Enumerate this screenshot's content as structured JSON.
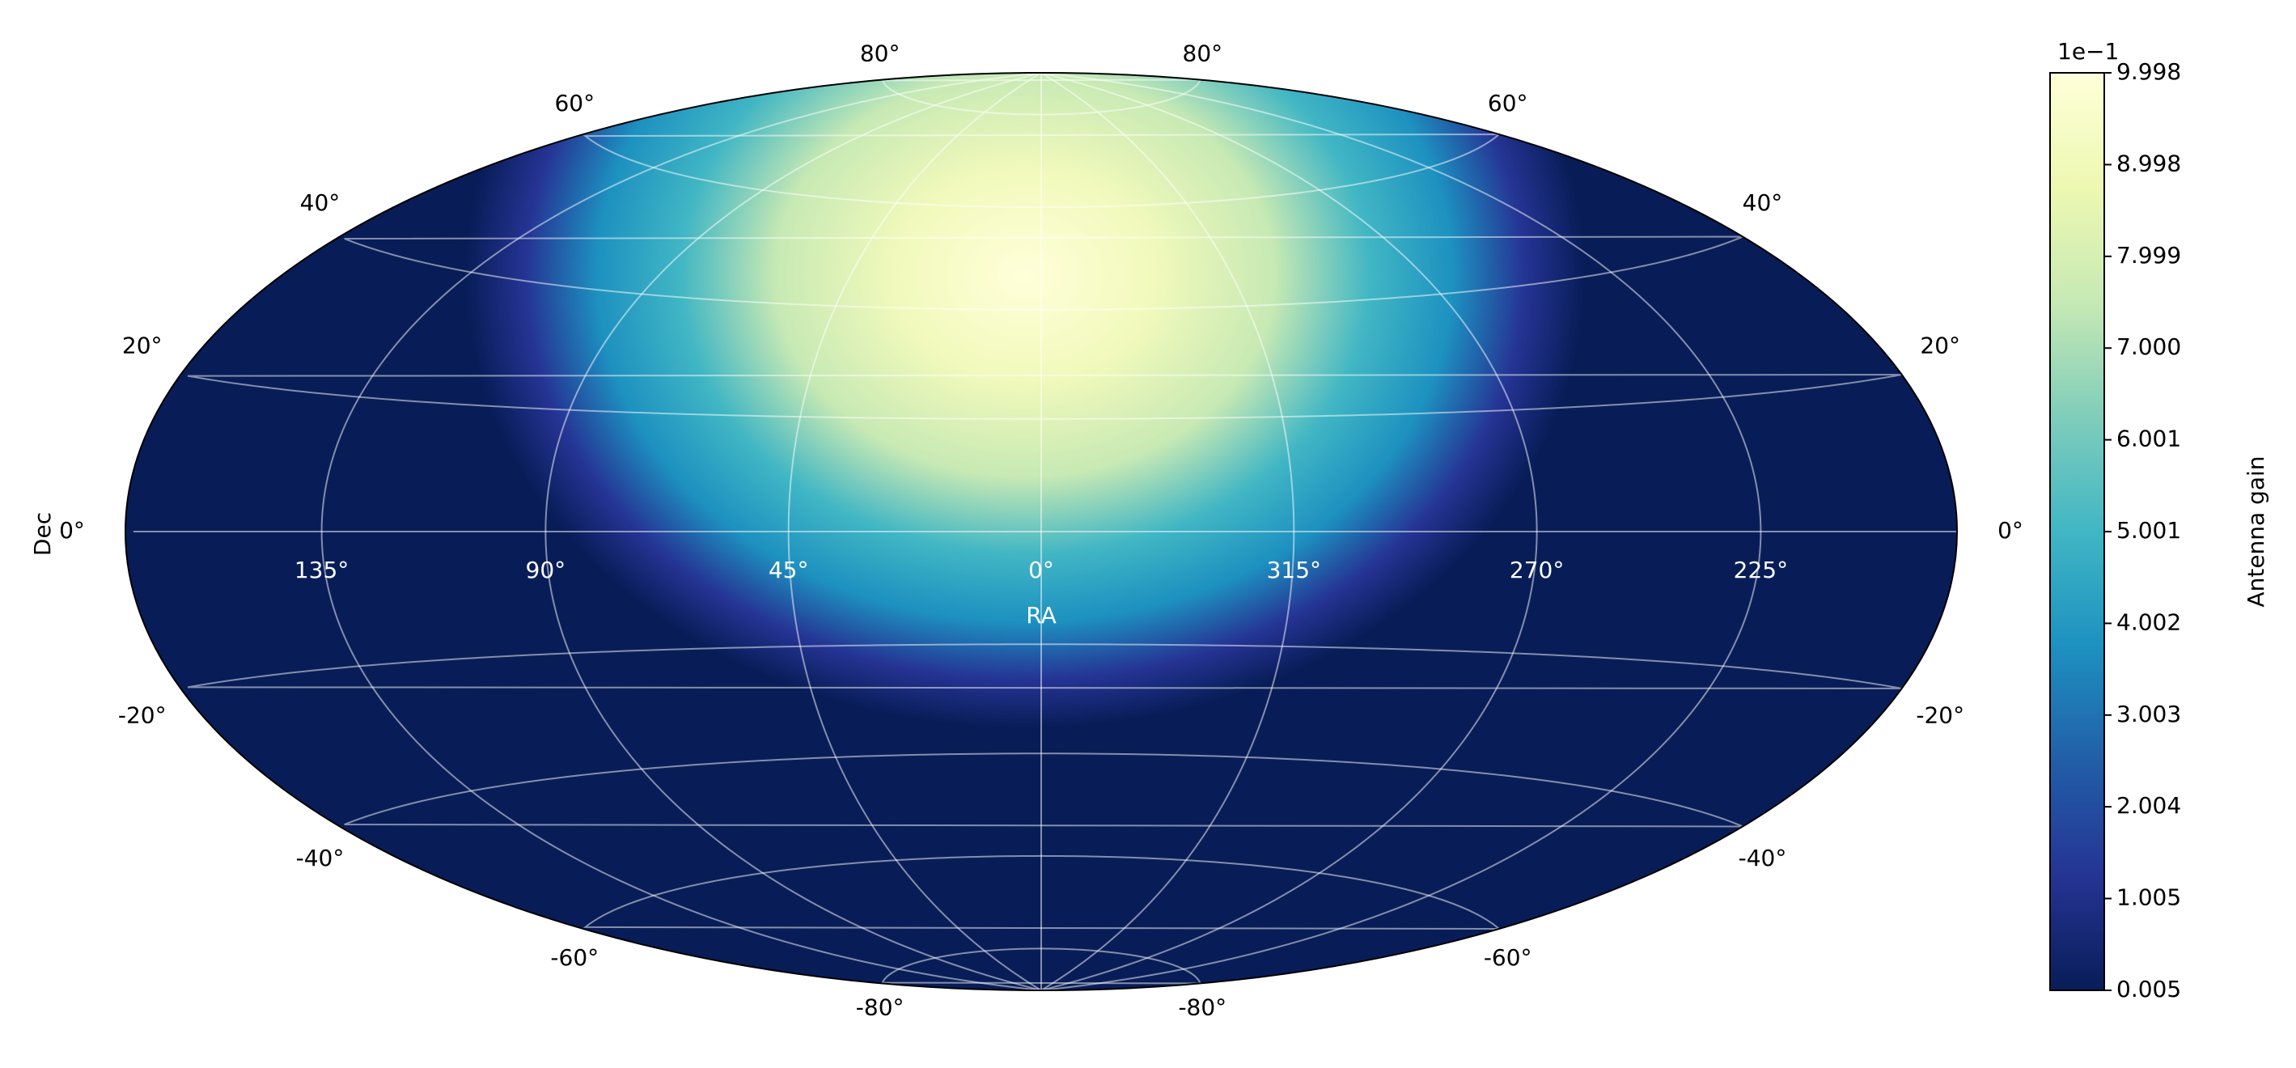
{
  "chart_data": {
    "type": "skymap",
    "projection": "hammer",
    "xlabel": "RA",
    "ylabel": "Dec",
    "xticks": [
      {
        "value": 135,
        "label": "135°"
      },
      {
        "value": 90,
        "label": "90°"
      },
      {
        "value": 45,
        "label": "45°"
      },
      {
        "value": 0,
        "label": "0°"
      },
      {
        "value": 315,
        "label": "315°"
      },
      {
        "value": 270,
        "label": "270°"
      },
      {
        "value": 225,
        "label": "225°"
      }
    ],
    "yticks": [
      {
        "value": 80,
        "label": "80°"
      },
      {
        "value": 60,
        "label": "60°"
      },
      {
        "value": 40,
        "label": "40°"
      },
      {
        "value": 20,
        "label": "20°"
      },
      {
        "value": 0,
        "label": "0°"
      },
      {
        "value": -20,
        "label": "-20°"
      },
      {
        "value": -40,
        "label": "-40°"
      },
      {
        "value": -60,
        "label": "-60°"
      },
      {
        "value": -80,
        "label": "-80°"
      }
    ],
    "grid": true,
    "colorbar": {
      "label": "Antenna gain",
      "offset_text": "1e−1",
      "clim": [
        0.005,
        9.998
      ],
      "ticks": [
        0.005,
        1.005,
        2.004,
        3.003,
        4.002,
        5.001,
        6.001,
        {
          "value": 7,
          "label": "7.000"
        },
        7.999,
        8.998,
        9.998
      ],
      "colormap": [
        "#081d58",
        "#253494",
        "#225ea8",
        "#1d91c0",
        "#41b6c4",
        "#7fcdbb",
        "#c7e9b4",
        "#edf8b1",
        "#ffffd9"
      ]
    }
  }
}
